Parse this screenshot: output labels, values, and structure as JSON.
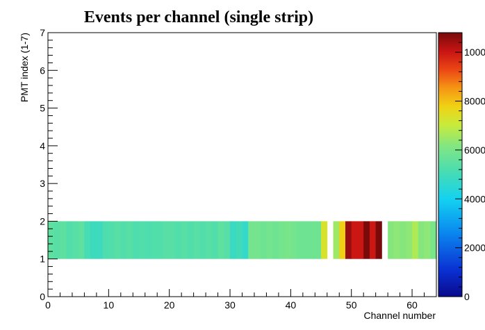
{
  "chart_data": {
    "type": "heatmap",
    "title": "Events per channel (single strip)",
    "xlabel": "Channel number",
    "ylabel": "PMT index (1-7)",
    "xlim": [
      0,
      64
    ],
    "ylim": [
      0,
      7
    ],
    "x_ticks": [
      0,
      10,
      20,
      30,
      40,
      50,
      60
    ],
    "y_ticks": [
      0,
      1,
      2,
      3,
      4,
      5,
      6,
      7
    ],
    "row": {
      "y_low": 1,
      "y_high": 2
    },
    "values": [
      5500,
      5400,
      5500,
      5300,
      5400,
      5500,
      5100,
      4900,
      4900,
      5200,
      5300,
      5400,
      5300,
      5400,
      5200,
      5300,
      5200,
      5300,
      5300,
      5400,
      5400,
      5300,
      5400,
      5300,
      5400,
      5300,
      5400,
      5300,
      5500,
      5400,
      4800,
      5000,
      4700,
      5900,
      5900,
      5800,
      5900,
      5800,
      5900,
      6000,
      5900,
      5800,
      5800,
      5800,
      5800,
      7300,
      0,
      6500,
      7800,
      10500,
      10000,
      10000,
      11000,
      10000,
      11000,
      0,
      6200,
      6300,
      6200,
      6300,
      6700,
      6200,
      6300,
      6000
    ],
    "colorbar": {
      "min": 0,
      "max": 10800,
      "tick_values": [
        0,
        2000,
        4000,
        6000,
        8000,
        10000
      ],
      "tick_labels": [
        "0",
        "2000",
        "4000",
        "6000",
        "8000",
        "10000"
      ]
    }
  }
}
